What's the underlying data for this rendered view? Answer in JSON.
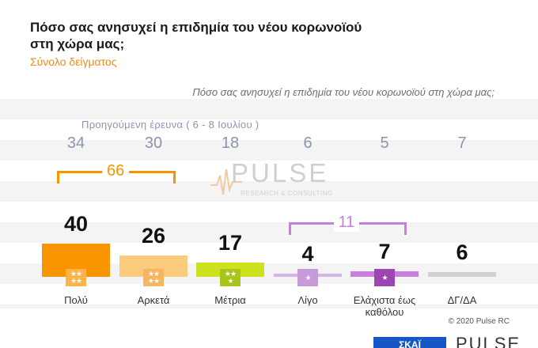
{
  "title": "Πόσο σας ανησυχεί η επιδημία του νέου κορωνοϊού στη χώρα μας;",
  "subtitle": "Σύνολο δείγματος",
  "question": "Πόσο σας ανησυχεί η επιδημία του νέου κορωνοϊού στη χώρα μας;",
  "previous_survey_label": "Προηγούμενη έρευνα ( 6 - 8 Ιουλίου )",
  "watermark": {
    "text": "PULSE",
    "subtext": "RESEARCH & CONSULTING"
  },
  "copyright": "© 2020 Pulse RC",
  "footer_logo_left": "ΣΚΑΪ",
  "footer_logo_right": "PULSE",
  "colors": {
    "orange": "#f79400",
    "light_orange": "#fbcb7c",
    "yellow_green": "#cce21f",
    "light_purple": "#d6b3e6",
    "purple": "#c87fdc",
    "gray": "#d0d0d0",
    "previous": "#8b95ad"
  },
  "chart_data": {
    "type": "bar",
    "categories": [
      "Πολύ",
      "Αρκετά",
      "Μέτρια",
      "Λίγο",
      "Ελάχιστα έως καθόλου",
      "ΔΓ/ΔΑ"
    ],
    "values": [
      40,
      26,
      17,
      4,
      7,
      6
    ],
    "previous_values": [
      34,
      30,
      18,
      6,
      5,
      7
    ],
    "groups": [
      {
        "label": "66",
        "categories": [
          "Πολύ",
          "Αρκετά"
        ],
        "color": "#f79400"
      },
      {
        "label": "11",
        "categories": [
          "Λίγο",
          "Ελάχιστα έως καθόλου"
        ],
        "color": "#c87fdc"
      }
    ],
    "ylim": [
      0,
      40
    ]
  }
}
